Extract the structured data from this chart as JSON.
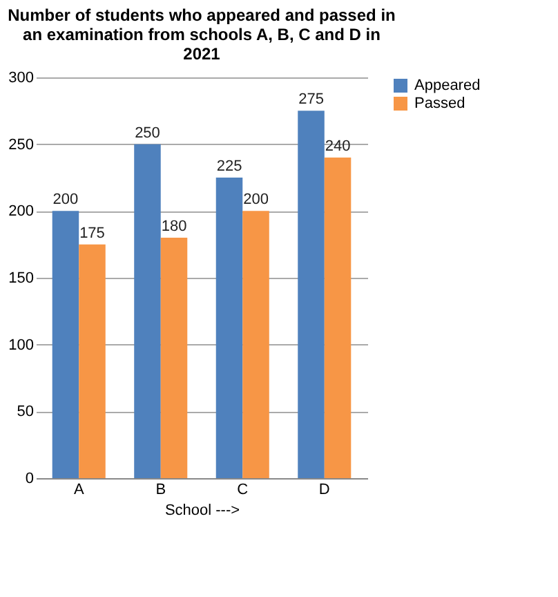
{
  "chart_data": {
    "type": "bar",
    "title": "Number of students who appeared and passed in an examination from schools A, B, C and D in 2021",
    "categories": [
      "A",
      "B",
      "C",
      "D"
    ],
    "series": [
      {
        "name": "Appeared",
        "color": "#4f81bd",
        "values": [
          200,
          250,
          225,
          275
        ]
      },
      {
        "name": "Passed",
        "color": "#f79646",
        "values": [
          175,
          180,
          200,
          240
        ]
      }
    ],
    "xlabel": "School --->",
    "ylim": [
      0,
      300
    ],
    "yticks": [
      0,
      50,
      100,
      150,
      200,
      250,
      300
    ],
    "grid": "y",
    "legend": "right",
    "data_labels": true
  }
}
